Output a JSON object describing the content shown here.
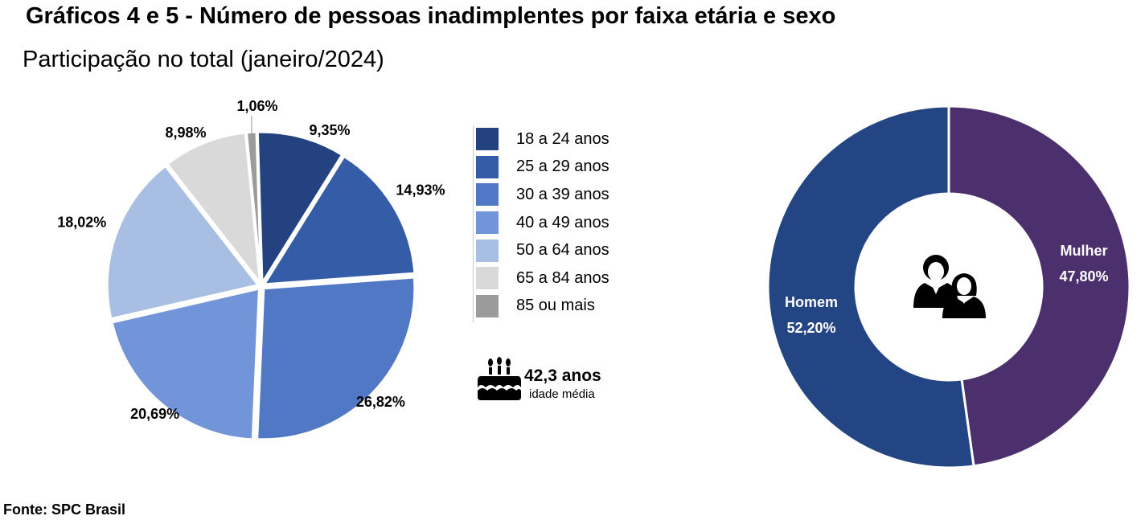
{
  "header": {
    "title": "Gráficos 4 e 5 - Número de pessoas inadimplentes por faixa etária e sexo",
    "subtitle": "Participação no total (janeiro/2024)"
  },
  "footer": {
    "source": "Fonte: SPC Brasil"
  },
  "average_age": {
    "value": "42,3 anos",
    "label": "idade média",
    "icon": "birthday-cake-icon"
  },
  "couple_icon": "couple-icon",
  "chart_data": [
    {
      "type": "pie",
      "categories": [
        "18 a 24 anos",
        "25 a 29 anos",
        "30 a 39 anos",
        "40 a 49 anos",
        "50 a 64 anos",
        "65 a 84 anos",
        "85 ou mais"
      ],
      "values": [
        9.35,
        14.93,
        26.82,
        20.69,
        18.02,
        8.98,
        1.06
      ],
      "labels": [
        "9,35%",
        "14,93%",
        "26,82%",
        "20,69%",
        "18,02%",
        "8,98%",
        "1,06%"
      ],
      "colors": [
        "#24427f",
        "#355ca6",
        "#5078c4",
        "#7294d8",
        "#a8bfe3",
        "#d9d9d9",
        "#9b9b9b"
      ],
      "legend_position": "right"
    },
    {
      "type": "pie",
      "subtype": "donut",
      "categories": [
        "Mulher",
        "Homem"
      ],
      "values": [
        47.8,
        52.2
      ],
      "labels": [
        "47,80%",
        "52,20%"
      ],
      "colors": [
        "#4c306d",
        "#244584"
      ]
    }
  ]
}
